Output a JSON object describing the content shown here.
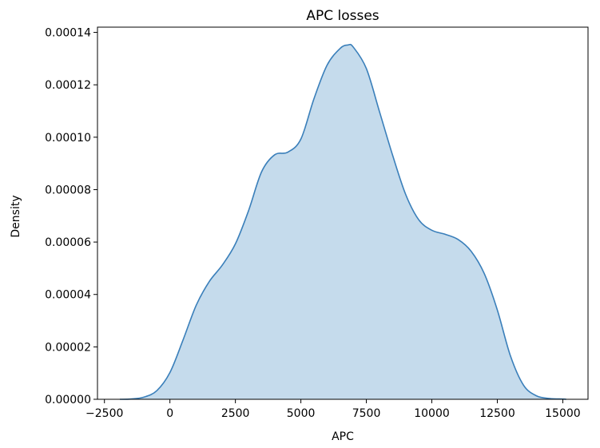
{
  "chart_data": {
    "type": "area",
    "title": "APC losses",
    "xlabel": "APC",
    "ylabel": "Density",
    "xlim": [
      -2766,
      15963
    ],
    "ylim": [
      0,
      0.000142
    ],
    "grid": false,
    "legend": "none",
    "colors": {
      "line": "#3a7fba",
      "fill": "#c5dbec"
    },
    "xticks": [
      {
        "value": -2500,
        "label": "−2500"
      },
      {
        "value": 0,
        "label": "0"
      },
      {
        "value": 2500,
        "label": "2500"
      },
      {
        "value": 5000,
        "label": "5000"
      },
      {
        "value": 7500,
        "label": "7500"
      },
      {
        "value": 10000,
        "label": "10000"
      },
      {
        "value": 12500,
        "label": "12500"
      },
      {
        "value": 15000,
        "label": "15000"
      }
    ],
    "yticks": [
      {
        "value": 0,
        "label": "0.00000"
      },
      {
        "value": 2e-05,
        "label": "0.00002"
      },
      {
        "value": 4e-05,
        "label": "0.00004"
      },
      {
        "value": 6e-05,
        "label": "0.00006"
      },
      {
        "value": 8e-05,
        "label": "0.00008"
      },
      {
        "value": 0.0001,
        "label": "0.00010"
      },
      {
        "value": 0.00012,
        "label": "0.00012"
      },
      {
        "value": 0.00014,
        "label": "0.00014"
      }
    ],
    "series": [
      {
        "x": [
          -1910,
          -1500,
          -1000,
          -500,
          0,
          500,
          1000,
          1500,
          2000,
          2500,
          3000,
          3500,
          4000,
          4500,
          5000,
          5500,
          6000,
          6500,
          6800,
          7000,
          7500,
          8000,
          8500,
          9000,
          9500,
          10000,
          10500,
          11000,
          11500,
          12000,
          12500,
          13000,
          13500,
          14000,
          14500,
          15000,
          15130
        ],
        "y": [
          0.0,
          1e-07,
          8e-07,
          3.3e-06,
          1.02e-05,
          2.26e-05,
          3.58e-05,
          4.49e-05,
          5.12e-05,
          5.93e-05,
          7.19e-05,
          8.68e-05,
          9.33e-05,
          9.43e-05,
          9.93e-05,
          0.0001147,
          0.0001275,
          0.0001339,
          0.0001352,
          0.0001344,
          0.0001262,
          0.0001098,
          9.32e-05,
          7.82e-05,
          6.85e-05,
          6.45e-05,
          6.3e-05,
          6.1e-05,
          5.65e-05,
          4.8e-05,
          3.41e-05,
          1.66e-05,
          5.4e-06,
          1.3e-06,
          3e-07,
          1e-07,
          0.0
        ]
      }
    ]
  }
}
